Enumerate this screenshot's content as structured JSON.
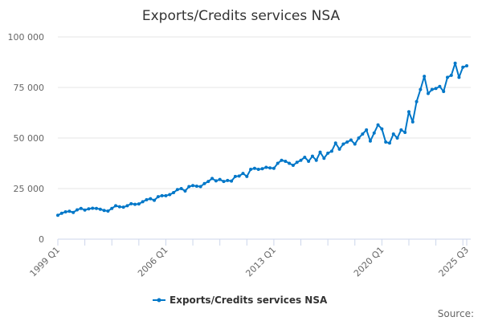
{
  "chart_data": {
    "type": "line",
    "title": "Exports/Credits services NSA",
    "xlabel": "",
    "ylabel": "",
    "ylim": [
      0,
      100000
    ],
    "yticks": [
      "0",
      "25 000",
      "50 000",
      "75 000",
      "100 000"
    ],
    "ytick_values": [
      0,
      25000,
      50000,
      75000,
      100000
    ],
    "x_start": "1999 Q1",
    "x_end": "2025 Q3",
    "xtick_labels": [
      "1999 Q1",
      "2006 Q1",
      "2013 Q1",
      "2020 Q1",
      "2025 Q3"
    ],
    "grid": "horizontal",
    "legend_position": "bottom",
    "series": [
      {
        "name": "Exports/Credits services NSA",
        "color": "#0077c8",
        "values": [
          11800,
          12800,
          13500,
          13800,
          13200,
          14500,
          15200,
          14400,
          15000,
          15300,
          15200,
          14800,
          14200,
          13900,
          15200,
          16500,
          16000,
          15800,
          16500,
          17500,
          17200,
          17400,
          18500,
          19500,
          20000,
          19200,
          21000,
          21500,
          21500,
          22000,
          23000,
          24500,
          25000,
          23800,
          26000,
          26500,
          26200,
          26000,
          27500,
          28500,
          30000,
          28800,
          29500,
          28500,
          29000,
          28700,
          31000,
          31200,
          32500,
          31000,
          34500,
          35000,
          34500,
          34800,
          35500,
          35200,
          35000,
          37500,
          39000,
          38500,
          37500,
          36500,
          38000,
          39000,
          40500,
          38500,
          41000,
          39000,
          43000,
          40000,
          42500,
          43500,
          47500,
          44500,
          47000,
          48000,
          49000,
          47000,
          50000,
          52000,
          54000,
          48500,
          52500,
          56500,
          54500,
          48000,
          47500,
          52000,
          50000,
          54000,
          52800,
          63000,
          58000,
          68000,
          74000,
          80500,
          72000,
          74000,
          74500,
          75500,
          73000,
          80000,
          81000,
          87000,
          80000,
          85000,
          85700
        ]
      }
    ]
  },
  "source_label": "Source:"
}
